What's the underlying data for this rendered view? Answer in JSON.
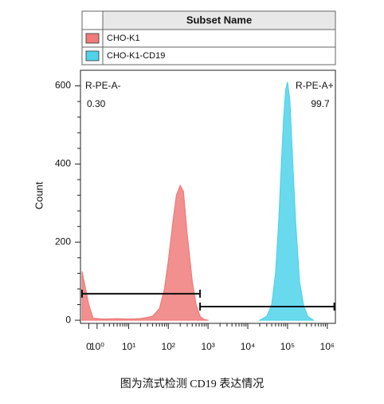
{
  "chart_data": {
    "type": "histogram-overlay",
    "legend_title": "Subset Name",
    "y_label": "Count",
    "caption": "图为流式检测 CD19 表达情况",
    "xscale": "biexponential",
    "xlim": [
      -1,
      1600000
    ],
    "ylim": [
      -8,
      640
    ],
    "xticks": [
      0,
      {
        "value": 1,
        "label": "10⁰"
      },
      {
        "value": 10,
        "label": "10¹"
      },
      {
        "value": 100,
        "label": "10²"
      },
      {
        "value": 1000,
        "label": "10³"
      },
      {
        "value": 10000,
        "label": "10⁴"
      },
      {
        "value": 100000,
        "label": "10⁵"
      },
      {
        "value": 1000000,
        "label": "10⁶"
      }
    ],
    "yticks": [
      0,
      200,
      400,
      600
    ],
    "series": [
      {
        "name": "CHO-K1",
        "color": "#f07b7b",
        "x": [
          -0.8,
          0,
          0.5,
          2,
          5,
          10,
          20,
          40,
          60,
          80,
          100,
          130,
          160,
          200,
          240,
          300,
          400,
          500,
          630,
          800,
          1000
        ],
        "values": [
          125,
          40,
          5,
          3,
          4,
          3,
          4,
          10,
          30,
          80,
          150,
          250,
          320,
          345,
          330,
          220,
          100,
          40,
          10,
          2,
          0
        ]
      },
      {
        "name": "CHO-K1-CD19",
        "color": "#4fd3ea",
        "x": [
          20000,
          30000,
          40000,
          50000,
          60000,
          70000,
          80000,
          90000,
          100000,
          115000,
          130000,
          160000,
          200000,
          250000,
          320000,
          450000
        ],
        "values": [
          0,
          10,
          40,
          120,
          250,
          400,
          520,
          590,
          610,
          560,
          440,
          250,
          100,
          40,
          10,
          0
        ]
      }
    ],
    "gates": [
      {
        "name": "R-PE-A-",
        "percent": 0.3,
        "percent_label": "0.30",
        "x": [
          -0.8,
          630
        ],
        "y": 68
      },
      {
        "name": "R-PE-A+",
        "percent": 99.7,
        "x": [
          630,
          1500000
        ],
        "y": 35
      }
    ]
  }
}
